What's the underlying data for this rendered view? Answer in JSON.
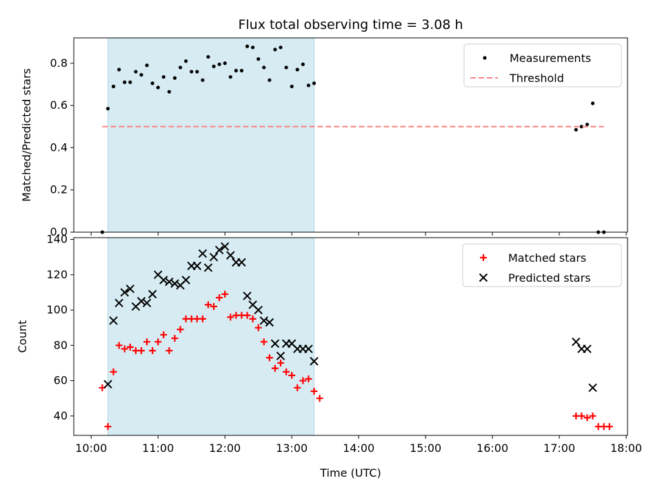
{
  "chart_data": [
    {
      "type": "scatter",
      "title": "Flux total observing time = 3.08 h",
      "xlabel": "",
      "ylabel": "Matched/Predicted stars",
      "x_unit": "hour of day (UTC)",
      "xlim": [
        "10:00",
        "18:00"
      ],
      "ylim": [
        0,
        0.92
      ],
      "y_ticks": [
        "0.0",
        "0.2",
        "0.4",
        "0.6",
        "0.8"
      ],
      "shaded_interval": {
        "x": [
          "10:15",
          "13:20"
        ],
        "color": "#add8e6"
      },
      "legend": {
        "placement": "top-right",
        "entries": [
          "Measurements",
          "Threshold"
        ]
      },
      "series": [
        {
          "name": "Measurements",
          "marker": "dot",
          "color": "#000000",
          "points": [
            [
              "10:10",
              0.0
            ],
            [
              "10:15",
              0.585
            ],
            [
              "10:20",
              0.69
            ],
            [
              "10:25",
              0.77
            ],
            [
              "10:30",
              0.71
            ],
            [
              "10:35",
              0.71
            ],
            [
              "10:40",
              0.76
            ],
            [
              "10:45",
              0.745
            ],
            [
              "10:50",
              0.79
            ],
            [
              "10:55",
              0.705
            ],
            [
              "11:00",
              0.685
            ],
            [
              "11:05",
              0.735
            ],
            [
              "11:10",
              0.665
            ],
            [
              "11:15",
              0.73
            ],
            [
              "11:20",
              0.78
            ],
            [
              "11:25",
              0.81
            ],
            [
              "11:30",
              0.76
            ],
            [
              "11:35",
              0.76
            ],
            [
              "11:40",
              0.72
            ],
            [
              "11:45",
              0.83
            ],
            [
              "11:50",
              0.785
            ],
            [
              "11:55",
              0.795
            ],
            [
              "12:00",
              0.8
            ],
            [
              "12:05",
              0.735
            ],
            [
              "12:10",
              0.765
            ],
            [
              "12:15",
              0.765
            ],
            [
              "12:20",
              0.88
            ],
            [
              "12:25",
              0.875
            ],
            [
              "12:30",
              0.82
            ],
            [
              "12:35",
              0.78
            ],
            [
              "12:40",
              0.72
            ],
            [
              "12:45",
              0.865
            ],
            [
              "12:50",
              0.875
            ],
            [
              "12:55",
              0.78
            ],
            [
              "13:00",
              0.69
            ],
            [
              "13:05",
              0.77
            ],
            [
              "13:10",
              0.795
            ],
            [
              "13:15",
              0.695
            ],
            [
              "13:20",
              0.705
            ],
            [
              "17:15",
              0.485
            ],
            [
              "17:20",
              0.5
            ],
            [
              "17:25",
              0.51
            ],
            [
              "17:30",
              0.61
            ],
            [
              "17:35",
              0.0
            ],
            [
              "17:40",
              0.0
            ]
          ]
        },
        {
          "name": "Threshold",
          "marker": "dashed-line",
          "color": "#ff7f7f",
          "points": [
            [
              "10:10",
              0.5
            ],
            [
              "17:40",
              0.5
            ]
          ]
        }
      ]
    },
    {
      "type": "scatter",
      "title": "",
      "xlabel": "Time (UTC)",
      "ylabel": "Count",
      "x_unit": "hour of day (UTC)",
      "xlim": [
        "10:00",
        "18:00"
      ],
      "ylim": [
        29,
        141
      ],
      "y_ticks": [
        "40",
        "60",
        "80",
        "100",
        "120",
        "140"
      ],
      "x_ticks": [
        "10:00",
        "11:00",
        "12:00",
        "13:00",
        "14:00",
        "15:00",
        "16:00",
        "17:00",
        "18:00"
      ],
      "shaded_interval": {
        "x": [
          "10:15",
          "13:20"
        ],
        "color": "#add8e6"
      },
      "legend": {
        "placement": "top-right",
        "entries": [
          "Matched stars",
          "Predicted stars"
        ]
      },
      "series": [
        {
          "name": "Matched stars",
          "marker": "plus",
          "color": "#ff0000",
          "points": [
            [
              "10:10",
              56
            ],
            [
              "10:15",
              34
            ],
            [
              "10:20",
              65
            ],
            [
              "10:25",
              80
            ],
            [
              "10:30",
              78
            ],
            [
              "10:35",
              79
            ],
            [
              "10:40",
              77
            ],
            [
              "10:45",
              77
            ],
            [
              "10:50",
              82
            ],
            [
              "10:55",
              77
            ],
            [
              "11:00",
              82
            ],
            [
              "11:05",
              86
            ],
            [
              "11:10",
              77
            ],
            [
              "11:15",
              84
            ],
            [
              "11:20",
              89
            ],
            [
              "11:25",
              95
            ],
            [
              "11:30",
              95
            ],
            [
              "11:35",
              95
            ],
            [
              "11:40",
              95
            ],
            [
              "11:45",
              103
            ],
            [
              "11:50",
              102
            ],
            [
              "11:55",
              107
            ],
            [
              "12:00",
              109
            ],
            [
              "12:05",
              96
            ],
            [
              "12:10",
              97
            ],
            [
              "12:15",
              97
            ],
            [
              "12:20",
              97
            ],
            [
              "12:25",
              95
            ],
            [
              "12:30",
              90
            ],
            [
              "12:35",
              82
            ],
            [
              "12:40",
              73
            ],
            [
              "12:45",
              67
            ],
            [
              "12:50",
              70
            ],
            [
              "12:55",
              65
            ],
            [
              "13:00",
              63
            ],
            [
              "13:05",
              56
            ],
            [
              "13:10",
              60
            ],
            [
              "13:15",
              61
            ],
            [
              "13:20",
              54
            ],
            [
              "13:25",
              50
            ],
            [
              "17:15",
              40
            ],
            [
              "17:20",
              40
            ],
            [
              "17:25",
              39
            ],
            [
              "17:30",
              40
            ],
            [
              "17:35",
              34
            ],
            [
              "17:40",
              34
            ],
            [
              "17:45",
              34
            ]
          ]
        },
        {
          "name": "Predicted stars",
          "marker": "x",
          "color": "#000000",
          "points": [
            [
              "10:15",
              58
            ],
            [
              "10:20",
              94
            ],
            [
              "10:25",
              104
            ],
            [
              "10:30",
              110
            ],
            [
              "10:35",
              112
            ],
            [
              "10:40",
              102
            ],
            [
              "10:45",
              105
            ],
            [
              "10:50",
              104
            ],
            [
              "10:55",
              109
            ],
            [
              "11:00",
              120
            ],
            [
              "11:05",
              117
            ],
            [
              "11:10",
              116
            ],
            [
              "11:15",
              115
            ],
            [
              "11:20",
              114
            ],
            [
              "11:25",
              117
            ],
            [
              "11:30",
              125
            ],
            [
              "11:35",
              125
            ],
            [
              "11:40",
              132
            ],
            [
              "11:45",
              124
            ],
            [
              "11:50",
              130
            ],
            [
              "11:55",
              134
            ],
            [
              "12:00",
              136
            ],
            [
              "12:05",
              131
            ],
            [
              "12:10",
              127
            ],
            [
              "12:15",
              127
            ],
            [
              "12:20",
              108
            ],
            [
              "12:25",
              103
            ],
            [
              "12:30",
              100
            ],
            [
              "12:35",
              94
            ],
            [
              "12:40",
              93
            ],
            [
              "12:45",
              81
            ],
            [
              "12:50",
              74
            ],
            [
              "12:55",
              81
            ],
            [
              "13:00",
              81
            ],
            [
              "13:05",
              78
            ],
            [
              "13:10",
              78
            ],
            [
              "13:15",
              78
            ],
            [
              "13:20",
              71
            ],
            [
              "17:15",
              82
            ],
            [
              "17:20",
              78
            ],
            [
              "17:25",
              78
            ],
            [
              "17:30",
              56
            ]
          ]
        }
      ]
    }
  ]
}
